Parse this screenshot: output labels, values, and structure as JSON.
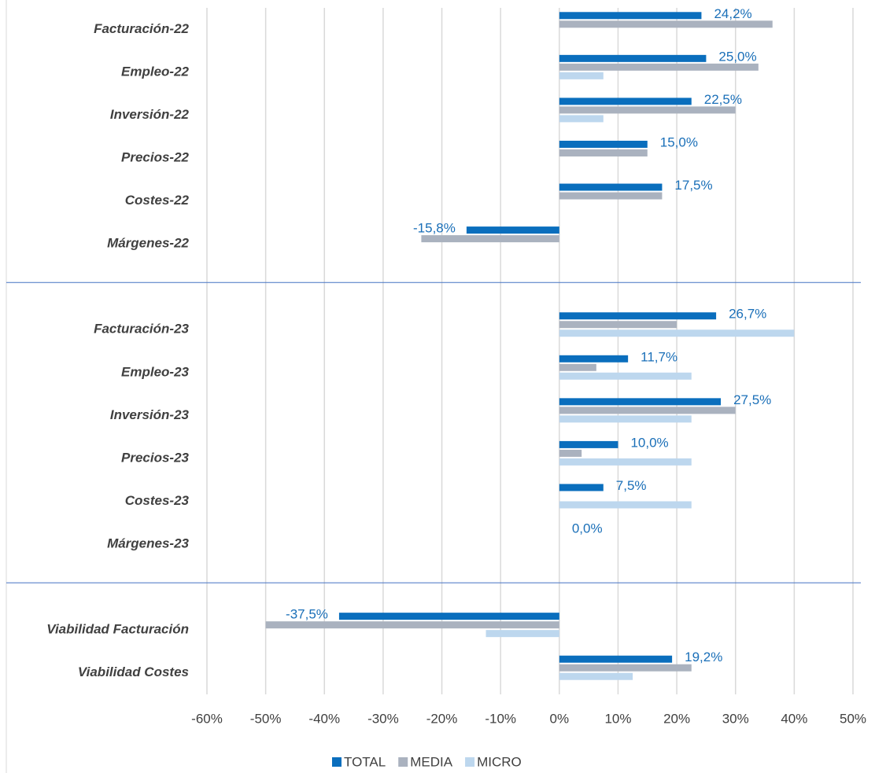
{
  "chart_data": {
    "type": "hbar",
    "categories": [
      "Facturación-22",
      "Empleo-22",
      "Inversión-22",
      "Precios-22",
      "Costes-22",
      "Márgenes-22",
      null,
      "Facturación-23",
      "Empleo-23",
      "Inversión-23",
      "Precios-23",
      "Costes-23",
      "Márgenes-23",
      null,
      "Viabilidad Facturación",
      "Viabilidad Costes"
    ],
    "series": [
      {
        "name": "TOTAL",
        "color": "#0a6ebd",
        "values": [
          24.2,
          25.0,
          22.5,
          15.0,
          17.5,
          -15.8,
          null,
          26.7,
          11.7,
          27.5,
          10.0,
          7.5,
          0.0,
          null,
          -37.5,
          19.2
        ],
        "value_labels": [
          "24,2%",
          "25,0%",
          "22,5%",
          "15,0%",
          "17,5%",
          "-15,8%",
          null,
          "26,7%",
          "11,7%",
          "27,5%",
          "10,0%",
          "7,5%",
          "0,0%",
          null,
          "-37,5%",
          "19,2%"
        ]
      },
      {
        "name": "MEDIA",
        "color": "#aab2bf",
        "values": [
          36.3,
          33.9,
          30.0,
          15.0,
          17.5,
          -23.5,
          null,
          20.0,
          6.3,
          30.0,
          3.8,
          0,
          0,
          null,
          -50.0,
          22.5
        ]
      },
      {
        "name": "MICRO",
        "color": "#bdd7ee",
        "values": [
          0,
          7.5,
          7.5,
          0,
          0,
          0,
          null,
          40.0,
          22.5,
          22.5,
          22.5,
          22.5,
          0,
          null,
          -12.5,
          12.5
        ]
      }
    ],
    "xlim": [
      -60,
      50
    ],
    "xticks": [
      {
        "value": -60,
        "label": "-60%"
      },
      {
        "value": -50,
        "label": "-50%"
      },
      {
        "value": -40,
        "label": "-40%"
      },
      {
        "value": -30,
        "label": "-30%"
      },
      {
        "value": -20,
        "label": "-20%"
      },
      {
        "value": -10,
        "label": "-10%"
      },
      {
        "value": 0,
        "label": "0%"
      },
      {
        "value": 10,
        "label": "10%"
      },
      {
        "value": 20,
        "label": "20%"
      },
      {
        "value": 30,
        "label": "30%"
      },
      {
        "value": 40,
        "label": "40%"
      },
      {
        "value": 50,
        "label": "50%"
      }
    ],
    "grid": true,
    "legend": "bottom"
  }
}
